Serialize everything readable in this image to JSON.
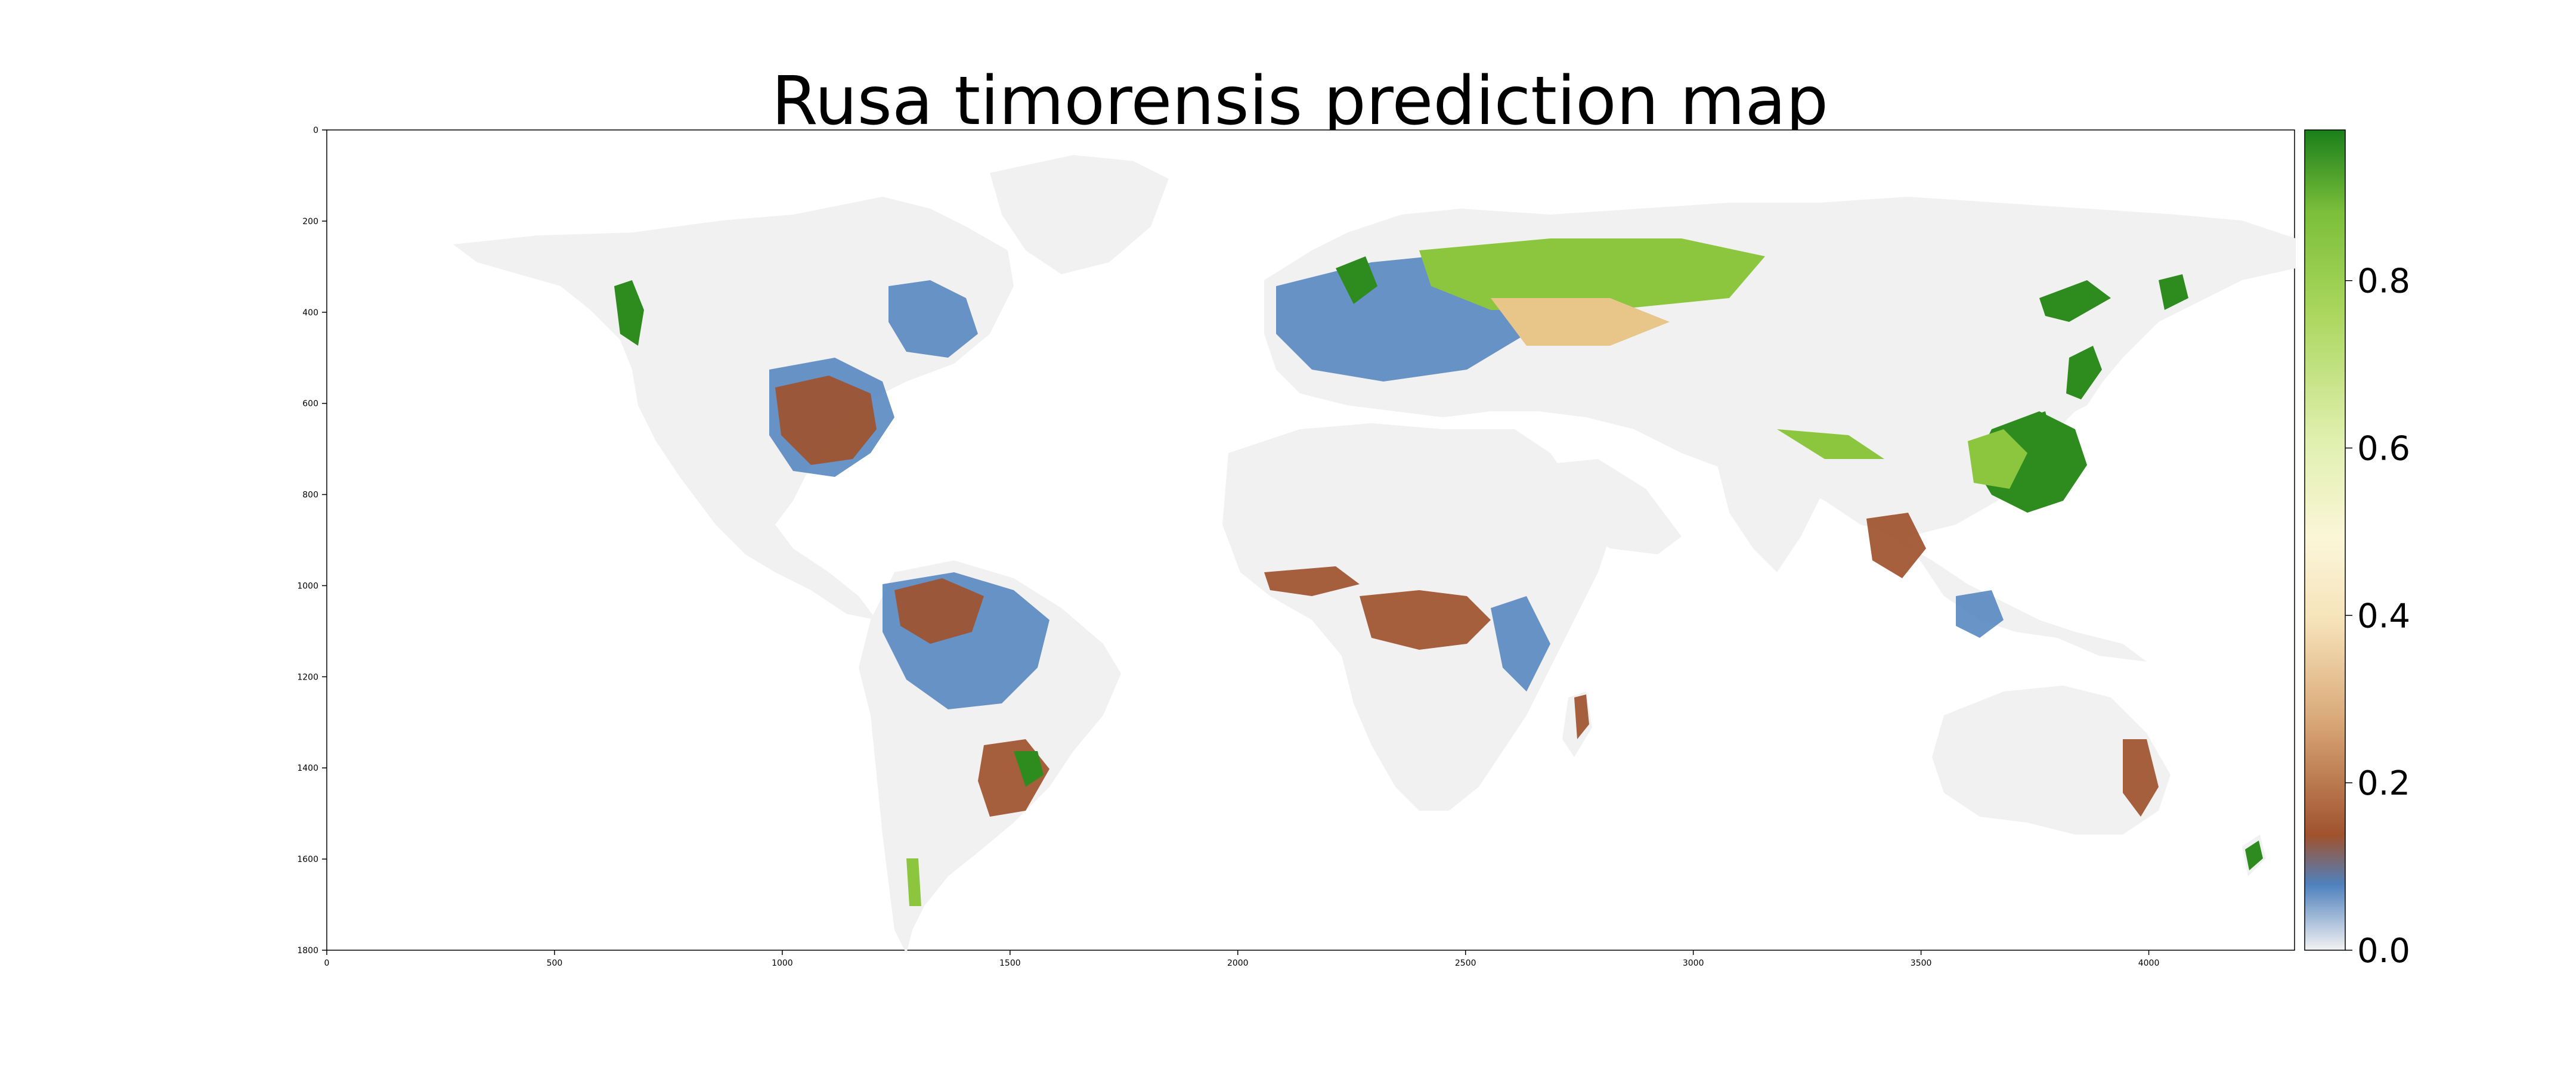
{
  "title": "Rusa timorensis prediction map",
  "map": {
    "x_ticks": [
      "0",
      "500",
      "1000",
      "1500",
      "2000",
      "2500",
      "3000",
      "3500",
      "4000"
    ],
    "x_tick_values": [
      0,
      500,
      1000,
      1500,
      2000,
      2500,
      3000,
      3500,
      4000
    ],
    "y_ticks": [
      "0",
      "200",
      "400",
      "600",
      "800",
      "1000",
      "1200",
      "1400",
      "1600",
      "1800"
    ],
    "y_tick_values": [
      0,
      200,
      400,
      600,
      800,
      1000,
      1200,
      1400,
      1600,
      1800
    ],
    "x_range": [
      0,
      4320
    ],
    "y_range": [
      0,
      1800
    ]
  },
  "colorbar": {
    "ticks": [
      "0.0",
      "0.2",
      "0.4",
      "0.6",
      "0.8"
    ],
    "tick_values": [
      0.0,
      0.2,
      0.4,
      0.6,
      0.8
    ],
    "range": [
      0.0,
      0.98
    ],
    "colors": [
      "#f2f2f2",
      "#4f81bd",
      "#a0522d",
      "#e8c68a",
      "#fbf6d8",
      "#c6e37f",
      "#8cc63f",
      "#1a7f1a"
    ]
  }
}
